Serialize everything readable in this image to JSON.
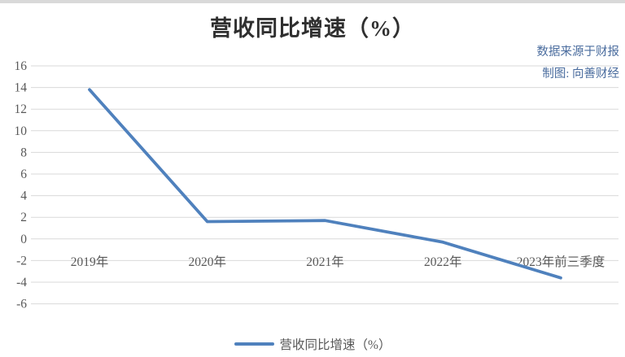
{
  "chart_data": {
    "type": "line",
    "title": "营收同比增速（%）",
    "categories": [
      "2019年",
      "2020年",
      "2021年",
      "2022年",
      "2023年前三季度"
    ],
    "series": [
      {
        "name": "营收同比增速（%）",
        "values": [
          13.8,
          1.6,
          1.7,
          -0.3,
          -3.6
        ]
      }
    ],
    "xlabel": "",
    "ylabel": "",
    "ylim": [
      -6,
      16
    ],
    "ytick_step": 2,
    "grid": true,
    "legend_position": "bottom"
  },
  "credits": {
    "source": "数据来源于财报",
    "author": "制图: 向善财经"
  },
  "colors": {
    "line": "#4f81bd",
    "grid": "#d9d9d9",
    "axis_label": "#595959",
    "title": "#2f2f2f",
    "credit": "#4a6c9e",
    "topbar": "#d9d9d9"
  }
}
